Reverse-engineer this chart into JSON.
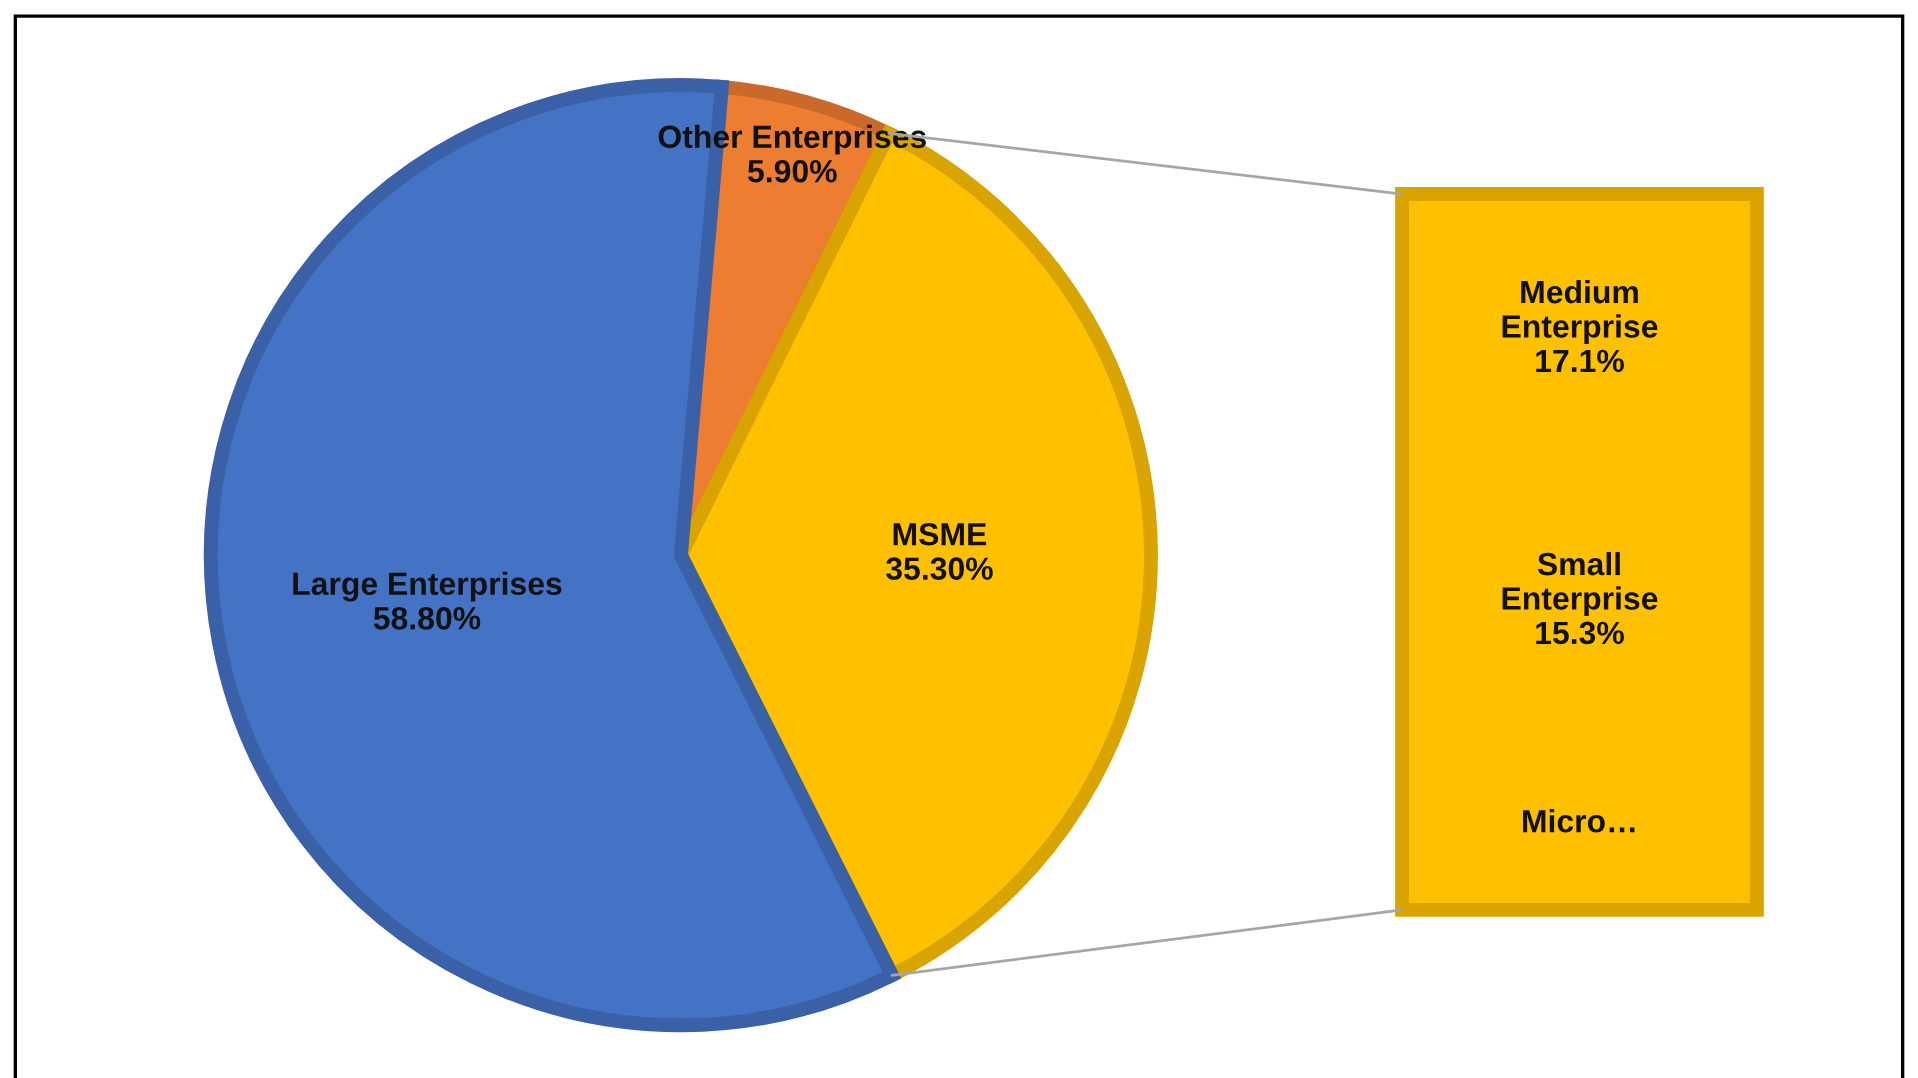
{
  "chart_data": {
    "type": "pie",
    "categories": [
      "Other Enterprises",
      "MSME",
      "Large Enterprises"
    ],
    "values": [
      5.9,
      35.3,
      58.8
    ],
    "value_labels": [
      "5.90%",
      "35.30%",
      "58.80%"
    ],
    "colors": [
      "#ed7d31",
      "#ffc000",
      "#4472c4"
    ],
    "annotations": [
      "Medium\nEnterprise\n17.1%",
      "Small\nEnterprise\n15.3%",
      "Micro…"
    ],
    "legend": false
  }
}
